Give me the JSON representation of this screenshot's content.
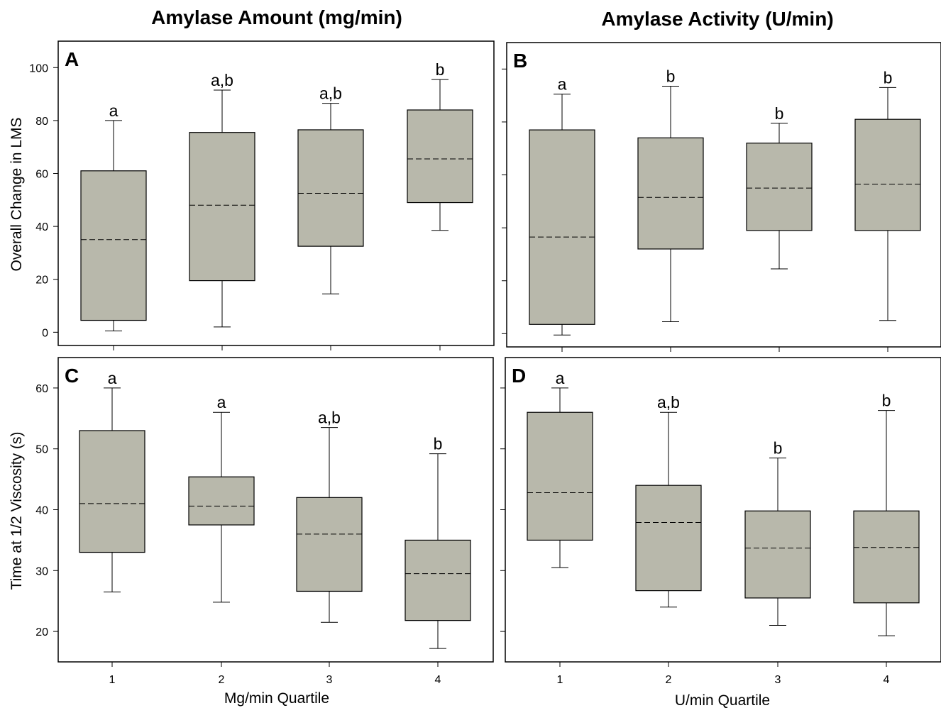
{
  "colors": {
    "box_fill": "#b8b8ab",
    "stroke": "#000000",
    "background": "#ffffff"
  },
  "column_titles": [
    "Amylase Amount (mg/min)",
    "Amylase Activity (U/min)"
  ],
  "y_labels": [
    "Overall Change in LMS",
    "Time at 1/2 Viscosity (s)"
  ],
  "x_labels": [
    "Mg/min Quartile",
    "U/min Quartile"
  ],
  "chart_data": [
    {
      "type": "box",
      "panel_label": "A",
      "categories": [
        "1",
        "2",
        "3",
        "4"
      ],
      "show_tick_labels": false,
      "ylim": [
        -5,
        110
      ],
      "yticks": [
        0,
        20,
        40,
        60,
        80,
        100
      ],
      "show_y_tick_labels": true,
      "boxes": [
        {
          "min": 0.5,
          "q1": 4.5,
          "median": 35,
          "q3": 61,
          "max": 80,
          "letter": "a"
        },
        {
          "min": 2,
          "q1": 19.5,
          "median": 48,
          "q3": 75.5,
          "max": 91.5,
          "letter": "a,b"
        },
        {
          "min": 14.5,
          "q1": 32.5,
          "median": 52.5,
          "q3": 76.5,
          "max": 86.5,
          "letter": "a,b"
        },
        {
          "min": 38.5,
          "q1": 49,
          "median": 65.5,
          "q3": 84,
          "max": 95.5,
          "letter": "b"
        }
      ]
    },
    {
      "type": "box",
      "panel_label": "B",
      "categories": [
        "1",
        "2",
        "3",
        "4"
      ],
      "show_tick_labels": false,
      "ylim": [
        -5,
        110
      ],
      "yticks": [
        0,
        20,
        40,
        60,
        80,
        100
      ],
      "show_y_tick_labels": false,
      "boxes": [
        {
          "min": -0.5,
          "q1": 3.5,
          "median": 36.5,
          "q3": 77,
          "max": 90.5,
          "letter": "a"
        },
        {
          "min": 4.5,
          "q1": 32,
          "median": 51.5,
          "q3": 74,
          "max": 93.5,
          "letter": "b"
        },
        {
          "min": 24.5,
          "q1": 39,
          "median": 55,
          "q3": 72,
          "max": 79.5,
          "letter": "b"
        },
        {
          "min": 5,
          "q1": 39,
          "median": 56.5,
          "q3": 81,
          "max": 93,
          "letter": "b"
        }
      ]
    },
    {
      "type": "box",
      "panel_label": "C",
      "categories": [
        "1",
        "2",
        "3",
        "4"
      ],
      "show_tick_labels": true,
      "ylim": [
        15,
        65
      ],
      "yticks": [
        20,
        30,
        40,
        50,
        60
      ],
      "show_y_tick_labels": true,
      "boxes": [
        {
          "min": 26.5,
          "q1": 33,
          "median": 41,
          "q3": 53,
          "max": 60,
          "letter": "a"
        },
        {
          "min": 24.8,
          "q1": 37.5,
          "median": 40.6,
          "q3": 45.4,
          "max": 56,
          "letter": "a"
        },
        {
          "min": 21.5,
          "q1": 26.6,
          "median": 36,
          "q3": 42,
          "max": 53.5,
          "letter": "a,b"
        },
        {
          "min": 17.2,
          "q1": 21.8,
          "median": 29.5,
          "q3": 35,
          "max": 49.2,
          "letter": "b"
        }
      ]
    },
    {
      "type": "box",
      "panel_label": "D",
      "categories": [
        "1",
        "2",
        "3",
        "4"
      ],
      "show_tick_labels": true,
      "ylim": [
        15,
        65
      ],
      "yticks": [
        20,
        30,
        40,
        50,
        60
      ],
      "show_y_tick_labels": false,
      "boxes": [
        {
          "min": 30.5,
          "q1": 35,
          "median": 42.8,
          "q3": 56,
          "max": 60,
          "letter": "a"
        },
        {
          "min": 24,
          "q1": 26.7,
          "median": 37.9,
          "q3": 44,
          "max": 56,
          "letter": "a,b"
        },
        {
          "min": 21,
          "q1": 25.5,
          "median": 33.7,
          "q3": 39.8,
          "max": 48.5,
          "letter": "b"
        },
        {
          "min": 19.3,
          "q1": 24.7,
          "median": 33.8,
          "q3": 39.8,
          "max": 56.3,
          "letter": "b"
        }
      ]
    }
  ]
}
